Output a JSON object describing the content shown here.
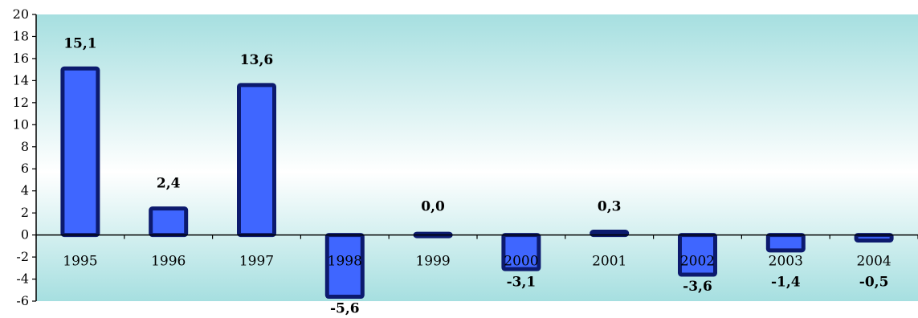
{
  "chart_data": {
    "type": "bar",
    "title": "",
    "xlabel": "",
    "ylabel": "",
    "categories": [
      "1995",
      "1996",
      "1997",
      "1998",
      "1999",
      "2000",
      "2001",
      "2002",
      "2003",
      "2004"
    ],
    "values": [
      15.1,
      2.4,
      13.6,
      -5.6,
      0.0,
      -3.1,
      0.3,
      -3.6,
      -1.4,
      -0.5
    ],
    "data_labels": [
      "15,1",
      "2,4",
      "13,6",
      "-5,6",
      "0,0",
      "-3,1",
      "0,3",
      "-3,6",
      "-1,4",
      "-0,5"
    ],
    "ylim": [
      -6,
      20
    ],
    "yticks": [
      -6,
      -4,
      -2,
      0,
      2,
      4,
      6,
      8,
      10,
      12,
      14,
      16,
      18,
      20
    ],
    "grid": false,
    "legend": "none",
    "colors": {
      "bar_fill": "#3f66ff",
      "bar_stroke": "#0c1a6e",
      "background_top": "#a6dfe0",
      "background_mid": "#ffffff",
      "background_bottom": "#a6dfe0",
      "axis": "#000000"
    }
  }
}
